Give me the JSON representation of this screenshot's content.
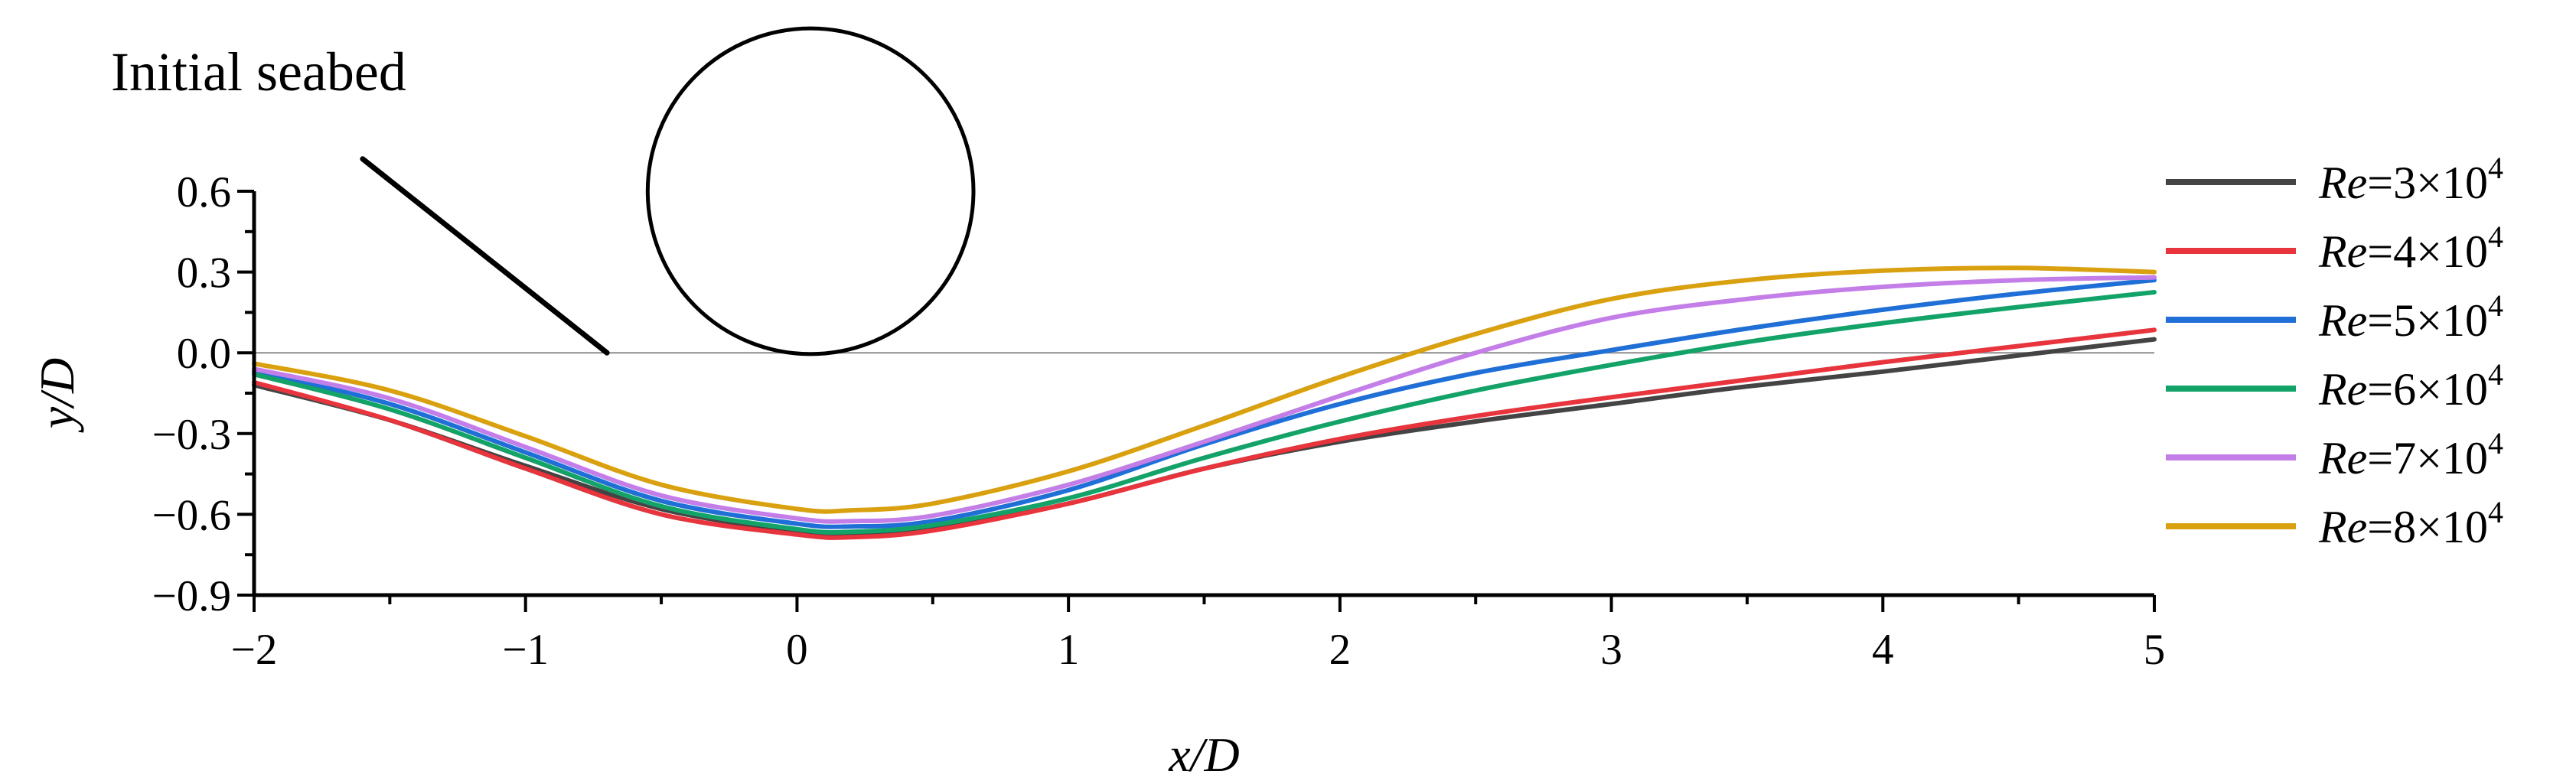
{
  "chart_data": {
    "type": "line",
    "xlabel": "x/D",
    "ylabel": "y/D",
    "xlim": [
      -2,
      5
    ],
    "ylim": [
      -0.9,
      0.6
    ],
    "x_ticks": [
      -2,
      -1,
      0,
      1,
      2,
      3,
      4,
      5
    ],
    "x_tick_labels": [
      "−2",
      "−1",
      "0",
      "1",
      "2",
      "3",
      "4",
      "5"
    ],
    "y_ticks": [
      -0.9,
      -0.6,
      -0.3,
      0.0,
      0.3,
      0.6
    ],
    "y_tick_labels": [
      "−0.9",
      "−0.6",
      "−0.3",
      "0.0",
      "0.3",
      "0.6"
    ],
    "legend_position": "right",
    "annotation": {
      "text": "Initial seabed",
      "pointer_start": [
        -1.6,
        0.72
      ],
      "pointer_end": [
        -0.7,
        0.0
      ]
    },
    "pipe": {
      "center": [
        0.05,
        0.6
      ],
      "radius": 0.6,
      "color": "#000000"
    },
    "initial_seabed_y": 0.0,
    "series": [
      {
        "name": "Re=3×10^4",
        "label_prefix": "Re",
        "label_value": "=3×10",
        "label_exp": "4",
        "color": "#444444",
        "x": [
          -2,
          -1.5,
          -1,
          -0.5,
          0,
          0.2,
          0.5,
          1,
          1.5,
          2,
          2.5,
          3,
          3.5,
          4,
          4.5,
          5
        ],
        "y": [
          -0.12,
          -0.25,
          -0.42,
          -0.58,
          -0.665,
          -0.675,
          -0.655,
          -0.56,
          -0.43,
          -0.33,
          -0.255,
          -0.19,
          -0.125,
          -0.07,
          -0.01,
          0.05
        ]
      },
      {
        "name": "Re=4×10^4",
        "label_prefix": "Re",
        "label_value": "=4×10",
        "label_exp": "4",
        "color": "#e8343c",
        "x": [
          -2,
          -1.5,
          -1,
          -0.5,
          0,
          0.2,
          0.5,
          1,
          1.5,
          2,
          2.5,
          3,
          3.5,
          4,
          4.5,
          5
        ],
        "y": [
          -0.11,
          -0.25,
          -0.43,
          -0.6,
          -0.675,
          -0.685,
          -0.66,
          -0.56,
          -0.43,
          -0.32,
          -0.235,
          -0.165,
          -0.1,
          -0.035,
          0.025,
          0.085
        ]
      },
      {
        "name": "Re=5×10^4",
        "label_prefix": "Re",
        "label_value": "=5×10",
        "label_exp": "4",
        "color": "#1f6fd6",
        "x": [
          -2,
          -1.5,
          -1,
          -0.5,
          0,
          0.2,
          0.5,
          1,
          1.5,
          2,
          2.5,
          3,
          3.5,
          4,
          4.5,
          5
        ],
        "y": [
          -0.07,
          -0.19,
          -0.37,
          -0.55,
          -0.635,
          -0.645,
          -0.625,
          -0.51,
          -0.34,
          -0.19,
          -0.075,
          0.01,
          0.09,
          0.16,
          0.22,
          0.27
        ]
      },
      {
        "name": "Re=6×10^4",
        "label_prefix": "Re",
        "label_value": "=6×10",
        "label_exp": "4",
        "color": "#13a369",
        "x": [
          -2,
          -1.5,
          -1,
          -0.5,
          0,
          0.2,
          0.5,
          1,
          1.5,
          2,
          2.5,
          3,
          3.5,
          4,
          4.5,
          5
        ],
        "y": [
          -0.08,
          -0.21,
          -0.39,
          -0.57,
          -0.655,
          -0.665,
          -0.64,
          -0.54,
          -0.39,
          -0.255,
          -0.14,
          -0.045,
          0.04,
          0.11,
          0.17,
          0.225
        ]
      },
      {
        "name": "Re=7×10^4",
        "label_prefix": "Re",
        "label_value": "=7×10",
        "label_exp": "4",
        "color": "#c47ee8",
        "x": [
          -2,
          -1.5,
          -1,
          -0.5,
          0,
          0.2,
          0.5,
          1,
          1.5,
          2,
          2.5,
          3,
          3.5,
          4,
          4.5,
          5
        ],
        "y": [
          -0.06,
          -0.17,
          -0.35,
          -0.53,
          -0.615,
          -0.625,
          -0.605,
          -0.49,
          -0.33,
          -0.16,
          0.0,
          0.13,
          0.2,
          0.245,
          0.27,
          0.28
        ]
      },
      {
        "name": "Re=8×10^4",
        "label_prefix": "Re",
        "label_value": "=8×10",
        "label_exp": "4",
        "color": "#d9a010",
        "x": [
          -2,
          -1.5,
          -1,
          -0.5,
          0,
          0.2,
          0.5,
          1,
          1.5,
          2,
          2.5,
          3,
          3.5,
          4,
          4.5,
          5
        ],
        "y": [
          -0.04,
          -0.14,
          -0.31,
          -0.49,
          -0.58,
          -0.585,
          -0.56,
          -0.44,
          -0.27,
          -0.09,
          0.07,
          0.2,
          0.27,
          0.305,
          0.315,
          0.3
        ]
      }
    ]
  }
}
